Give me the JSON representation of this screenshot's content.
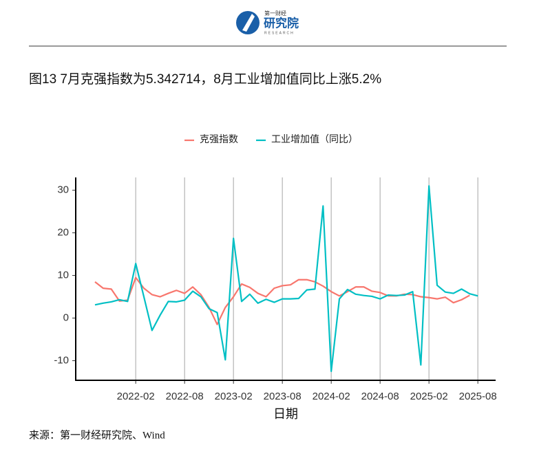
{
  "header": {
    "logo_top": "第一财经",
    "logo_main": "研究院",
    "logo_sub": "RESEARCH"
  },
  "chart_data": {
    "type": "line",
    "title": "图13 7月克强指数为5.342714，8月工业增加值同比上涨5.2%",
    "x_label": "日期",
    "source": "来源：第一财经研究院、Wind",
    "x": [
      "2021-09",
      "2021-10",
      "2021-11",
      "2021-12",
      "2022-01",
      "2022-02",
      "2022-03",
      "2022-04",
      "2022-05",
      "2022-06",
      "2022-07",
      "2022-08",
      "2022-09",
      "2022-10",
      "2022-11",
      "2022-12",
      "2023-01",
      "2023-02",
      "2023-03",
      "2023-04",
      "2023-05",
      "2023-06",
      "2023-07",
      "2023-08",
      "2023-09",
      "2023-10",
      "2023-11",
      "2023-12",
      "2024-01",
      "2024-02",
      "2024-03",
      "2024-04",
      "2024-05",
      "2024-06",
      "2024-07",
      "2024-08",
      "2024-09",
      "2024-10",
      "2024-11",
      "2024-12",
      "2025-01",
      "2025-02",
      "2025-03",
      "2025-04",
      "2025-05",
      "2025-06",
      "2025-07",
      "2025-08"
    ],
    "series": [
      {
        "name": "克强指数",
        "color": "#F8766D",
        "values": [
          8.5,
          7.0,
          6.8,
          4.0,
          4.2,
          9.5,
          7.0,
          5.5,
          5.0,
          5.8,
          6.5,
          5.8,
          7.3,
          5.5,
          2.5,
          -1.5,
          2.5,
          5.0,
          8.0,
          7.2,
          5.8,
          5.0,
          7.0,
          7.6,
          7.8,
          9.0,
          9.0,
          8.5,
          7.5,
          6.2,
          5.2,
          6.2,
          7.3,
          7.3,
          6.3,
          6.0,
          5.2,
          5.2,
          5.6,
          5.5,
          5.0,
          4.8,
          4.5,
          4.9,
          3.6,
          4.3,
          5.342714,
          null
        ]
      },
      {
        "name": "工业增加值（同比）",
        "color": "#00BFC4",
        "values": [
          3.1,
          3.5,
          3.8,
          4.3,
          3.9,
          12.8,
          5.0,
          -2.9,
          0.7,
          3.9,
          3.8,
          4.2,
          6.3,
          5.0,
          2.2,
          1.3,
          -9.8,
          18.7,
          3.9,
          5.6,
          3.5,
          4.4,
          3.7,
          4.5,
          4.5,
          4.6,
          6.6,
          6.8,
          26.3,
          -12.5,
          4.5,
          6.7,
          5.6,
          5.3,
          5.1,
          4.5,
          5.4,
          5.3,
          5.4,
          6.2,
          -11.0,
          31.0,
          7.7,
          6.1,
          5.8,
          6.8,
          5.7,
          5.2
        ]
      }
    ],
    "xticks": [
      "2022-02",
      "2022-08",
      "2023-02",
      "2023-08",
      "2024-02",
      "2024-08",
      "2025-02",
      "2025-08"
    ],
    "ylim": [
      -14.6,
      33
    ],
    "yticks": [
      -10,
      0,
      10,
      20,
      30
    ],
    "grid": "x",
    "legend": "top"
  }
}
